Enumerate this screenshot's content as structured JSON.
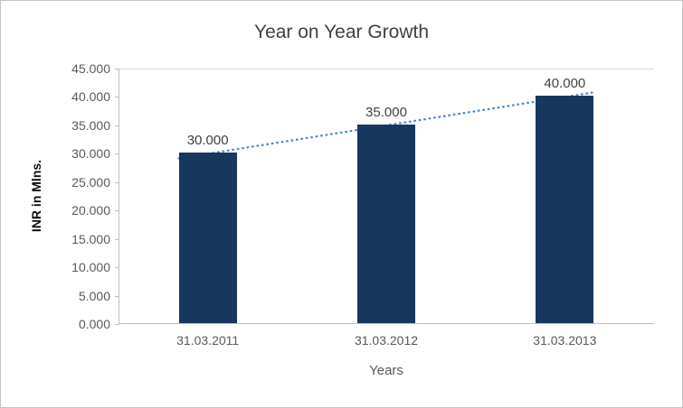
{
  "chart_data": {
    "type": "bar",
    "title": "Year on Year Growth",
    "xlabel": "Years",
    "ylabel": "INR in Mlns.",
    "categories": [
      "31.03.2011",
      "31.03.2012",
      "31.03.2013"
    ],
    "values": [
      30,
      35,
      40
    ],
    "data_labels": [
      "30.000",
      "35.000",
      "40.000"
    ],
    "y_ticks": [
      "45.000",
      "40.000",
      "35.000",
      "30.000",
      "25.000",
      "20.000",
      "15.000",
      "10.000",
      "5.000",
      "0.000"
    ],
    "ylim": [
      0,
      45
    ],
    "grid": "top-gridline-only",
    "legend": "none",
    "trendline": {
      "style": "dotted",
      "points": "linear-through-bar-tops"
    },
    "colors": {
      "bar": "#17375e",
      "trendline": "#4a89c8",
      "title": "#404040",
      "tick_label": "#595959",
      "axis_line": "#bfbfbf",
      "data_label": "#404040"
    }
  }
}
